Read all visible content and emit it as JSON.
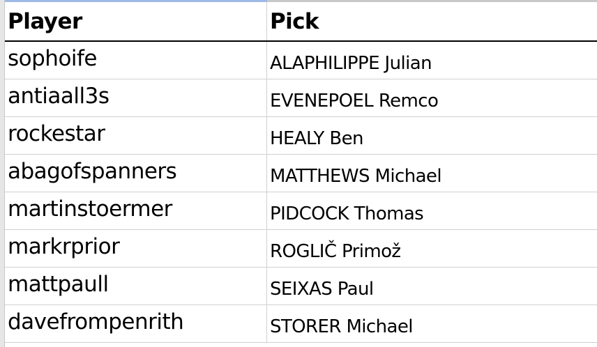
{
  "columns": {
    "player": "Player",
    "pick": "Pick"
  },
  "rows": [
    {
      "player": "sophoife",
      "pick": "ALAPHILIPPE Julian"
    },
    {
      "player": "antiaall3s",
      "pick": "EVENEPOEL Remco"
    },
    {
      "player": "rockestar",
      "pick": "HEALY Ben"
    },
    {
      "player": "abagofspanners",
      "pick": "MATTHEWS Michael"
    },
    {
      "player": "martinstoermer",
      "pick": "PIDCOCK Thomas"
    },
    {
      "player": "markrprior",
      "pick": "ROGLIČ Primož"
    },
    {
      "player": "mattpaull",
      "pick": "SEIXAS Paul"
    },
    {
      "player": "davefrompenrith",
      "pick": "STORER Michael"
    }
  ]
}
